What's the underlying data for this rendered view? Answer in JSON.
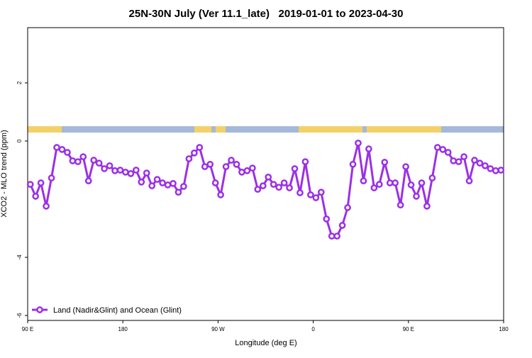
{
  "chart_data": {
    "type": "line",
    "title": "25N-30N July (Ver 11.1_late)   2019-01-01 to 2023-04-30",
    "x_label": "Longitude (deg E)",
    "y_label": "XCO2 - MLO trend (ppm)",
    "xlim": [
      90,
      540
    ],
    "ylim": [
      -6.17,
      3.9
    ],
    "xticks": [
      {
        "value": 90,
        "label": "90 E"
      },
      180,
      {
        "value": 270,
        "label": "90 W"
      },
      {
        "value": 360,
        "label": "0"
      },
      {
        "value": 450,
        "label": "90 E"
      },
      {
        "value": 540,
        "label": "180"
      }
    ],
    "yticks": [
      -6,
      -4,
      0,
      2
    ],
    "legend": "bottom-left",
    "x": [
      92.5,
      97.5,
      102.5,
      107.5,
      112.5,
      117.5,
      122.5,
      127.5,
      132.5,
      137.5,
      142.5,
      147.5,
      152.5,
      157.5,
      162.5,
      167.5,
      172.5,
      177.5,
      182.5,
      187.5,
      192.5,
      197.5,
      202.5,
      207.5,
      212.5,
      217.5,
      222.5,
      227.5,
      232.5,
      237.5,
      242.5,
      247.5,
      252.5,
      257.5,
      262.5,
      267.5,
      272.5,
      277.5,
      282.5,
      287.5,
      292.5,
      297.5,
      302.5,
      307.5,
      312.5,
      317.5,
      322.5,
      327.5,
      332.5,
      337.5,
      342.5,
      347.5,
      352.5,
      357.5,
      362.5,
      367.5,
      372.5,
      377.5,
      382.5,
      387.5,
      392.5,
      397.5,
      402.5,
      407.5,
      412.5,
      417.5,
      422.5,
      427.5,
      432.5,
      437.5,
      442.5,
      447.5,
      452.5,
      457.5,
      462.5,
      467.5,
      472.5,
      477.5,
      482.5,
      487.5,
      492.5,
      497.5,
      502.5,
      507.5,
      512.5,
      517.5,
      522.5,
      527.5,
      532.5,
      537.5
    ],
    "series": [
      {
        "name": "Land (Nadir&Glint) and Ocean (Glint)",
        "color": "#9b30e6",
        "values": [
          -1.49,
          -1.9,
          -1.44,
          -2.24,
          -1.27,
          -0.22,
          -0.29,
          -0.39,
          -0.68,
          -0.71,
          -0.54,
          -1.37,
          -0.66,
          -0.76,
          -0.95,
          -0.85,
          -1.02,
          -1.0,
          -1.07,
          -1.12,
          -1.0,
          -1.41,
          -1.1,
          -1.54,
          -1.32,
          -1.44,
          -1.51,
          -1.46,
          -1.76,
          -1.56,
          -0.61,
          -0.41,
          -0.22,
          -0.88,
          -0.8,
          -1.44,
          -1.85,
          -0.88,
          -0.66,
          -0.8,
          -1.07,
          -1.02,
          -0.93,
          -1.66,
          -1.54,
          -1.24,
          -1.49,
          -1.59,
          -1.44,
          -1.61,
          -0.95,
          -1.78,
          -0.71,
          -1.85,
          -1.95,
          -1.76,
          -2.68,
          -3.27,
          -3.27,
          -2.9,
          -2.29,
          -0.8,
          -0.07,
          -1.37,
          -0.27,
          -1.61,
          -1.49,
          -0.73,
          -1.44,
          -1.44,
          -2.2,
          -0.88,
          -1.51,
          -1.9,
          -1.44,
          -2.24,
          -1.27,
          -0.22,
          -0.29,
          -0.39,
          -0.68,
          -0.71,
          -0.54,
          -1.37,
          -0.66,
          -0.76,
          -0.85,
          -0.95,
          -1.02,
          -1.0
        ]
      }
    ]
  }
}
